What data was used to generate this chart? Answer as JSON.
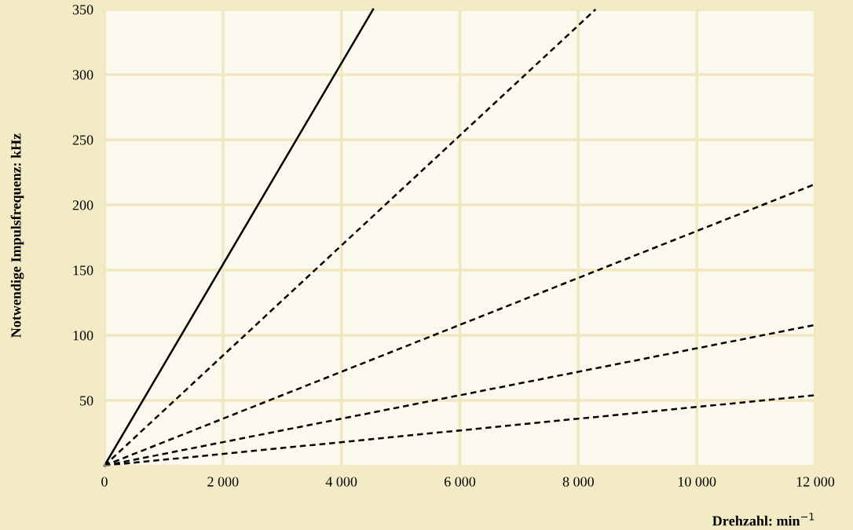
{
  "chart_data": {
    "type": "line",
    "xlabel": "Drehzahl: min$^{−1}$",
    "ylabel": "Notwendige Impulsfrequenz: kHz",
    "series": [
      {
        "x": [
          0,
          4535
        ],
        "values": [
          0,
          350
        ],
        "color": "#000000",
        "line_style": "solid"
      },
      {
        "x": [
          0,
          8290
        ],
        "values": [
          0,
          350
        ],
        "color": "#000000",
        "line_style": "dashed"
      },
      {
        "x": [
          0,
          12000
        ],
        "values": [
          0,
          216
        ],
        "color": "#000000",
        "line_style": "dashed"
      },
      {
        "x": [
          0,
          12000
        ],
        "values": [
          0,
          108
        ],
        "color": "#000000",
        "line_style": "dashed"
      },
      {
        "x": [
          0,
          12000
        ],
        "values": [
          0,
          54
        ],
        "color": "#000000",
        "line_style": "dashed"
      }
    ],
    "xlim": [
      0,
      12000
    ],
    "xticks": [
      0,
      {
        "value": 2000,
        "label": "2 000"
      },
      {
        "value": 4000,
        "label": "4 000"
      },
      {
        "value": 6000,
        "label": "6 000"
      },
      {
        "value": 8000,
        "label": "8 000"
      },
      {
        "value": 10000,
        "label": "10 000"
      },
      {
        "value": 12000,
        "label": "12 000"
      }
    ],
    "ylim": [
      0,
      350
    ],
    "yticks": [
      50,
      100,
      150,
      200,
      250,
      300,
      350
    ],
    "grid": true,
    "legend": false,
    "marker": "none"
  }
}
